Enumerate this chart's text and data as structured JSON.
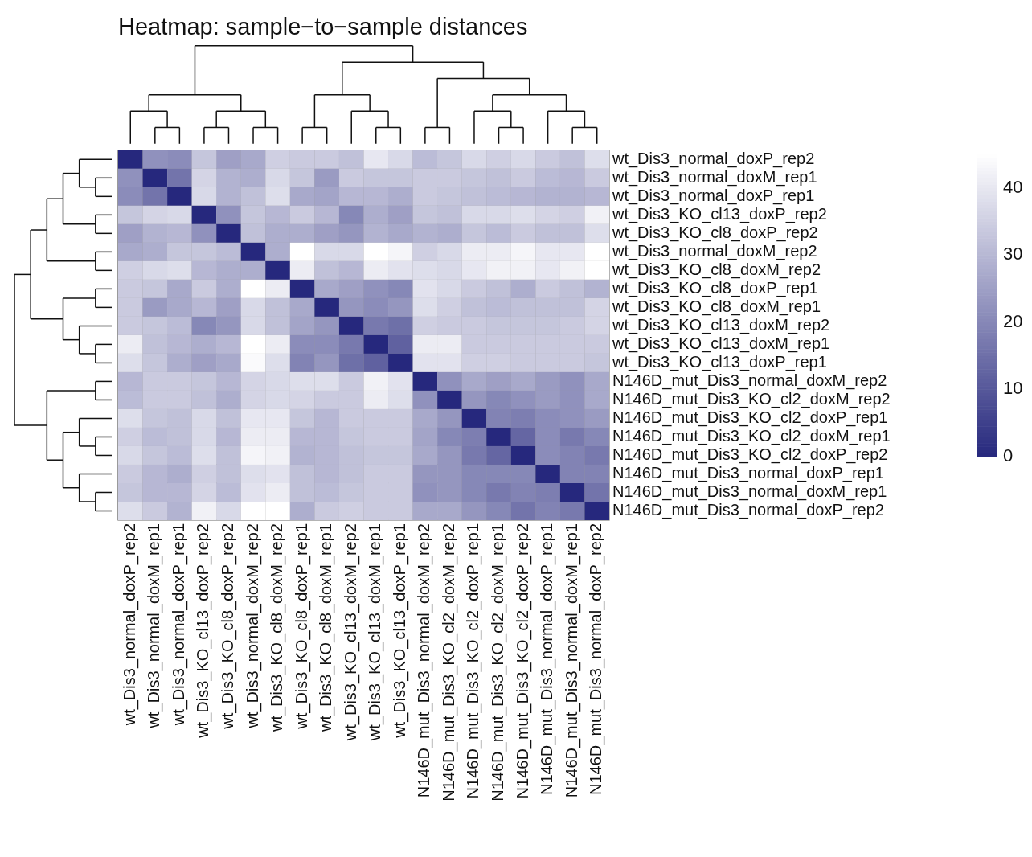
{
  "chart_data": {
    "type": "heatmap",
    "title": "Heatmap: sample−to−sample distances",
    "categories": [
      "wt_Dis3_normal_doxP_rep2",
      "wt_Dis3_normal_doxM_rep1",
      "wt_Dis3_normal_doxP_rep1",
      "wt_Dis3_KO_cl13_doxP_rep2",
      "wt_Dis3_KO_cl8_doxP_rep2",
      "wt_Dis3_normal_doxM_rep2",
      "wt_Dis3_KO_cl8_doxM_rep2",
      "wt_Dis3_KO_cl8_doxP_rep1",
      "wt_Dis3_KO_cl8_doxM_rep1",
      "wt_Dis3_KO_cl13_doxM_rep2",
      "wt_Dis3_KO_cl13_doxM_rep1",
      "wt_Dis3_KO_cl13_doxP_rep1",
      "N146D_mut_Dis3_normal_doxM_rep2",
      "N146D_mut_Dis3_KO_cl2_doxM_rep2",
      "N146D_mut_Dis3_KO_cl2_doxP_rep1",
      "N146D_mut_Dis3_KO_cl2_doxM_rep1",
      "N146D_mut_Dis3_KO_cl2_doxP_rep2",
      "N146D_mut_Dis3_normal_doxP_rep1",
      "N146D_mut_Dis3_normal_doxM_rep1",
      "N146D_mut_Dis3_normal_doxP_rep2"
    ],
    "y_categories": [
      "wt_Dis3_normal_doxP_rep2",
      "wt_Dis3_normal_doxM_rep1",
      "wt_Dis3_normal_doxP_rep1",
      "wt_Dis3_KO_cl13_doxP_rep2",
      "wt_Dis3_KO_cl8_doxP_rep2",
      "wt_Dis3_normal_doxM_rep2",
      "wt_Dis3_KO_cl8_doxM_rep2",
      "wt_Dis3_KO_cl8_doxP_rep1",
      "wt_Dis3_KO_cl8_doxM_rep1",
      "wt_Dis3_KO_cl13_doxM_rep2",
      "wt_Dis3_KO_cl13_doxM_rep1",
      "wt_Dis3_KO_cl13_doxP_rep1",
      "N146D_mut_Dis3_normal_doxM_rep2",
      "N146D_mut_Dis3_KO_cl2_doxM_rep2",
      "N146D_mut_Dis3_KO_cl2_doxP_rep1",
      "N146D_mut_Dis3_KO_cl2_doxM_rep1",
      "N146D_mut_Dis3_KO_cl2_doxP_rep2",
      "N146D_mut_Dis3_normal_doxP_rep1",
      "N146D_mut_Dis3_normal_doxM_rep1",
      "N146D_mut_Dis3_normal_doxP_rep2"
    ],
    "cells": [
      [
        0,
        22,
        21,
        33,
        25,
        27,
        35,
        34,
        34,
        32,
        40,
        37,
        31,
        33,
        37,
        35,
        37,
        34,
        32,
        38
      ],
      [
        22,
        0,
        16,
        36,
        29,
        28,
        37,
        33,
        24,
        34,
        33,
        33,
        34,
        34,
        33,
        32,
        34,
        31,
        30,
        34
      ],
      [
        21,
        16,
        0,
        37,
        29,
        32,
        38,
        27,
        26,
        30,
        30,
        28,
        34,
        33,
        32,
        31,
        30,
        29,
        29,
        30
      ],
      [
        33,
        36,
        37,
        0,
        22,
        33,
        30,
        34,
        30,
        20,
        28,
        25,
        33,
        32,
        37,
        37,
        38,
        36,
        35,
        42
      ],
      [
        25,
        29,
        30,
        22,
        0,
        32,
        28,
        28,
        25,
        23,
        29,
        27,
        29,
        28,
        33,
        31,
        34,
        32,
        32,
        38
      ],
      [
        27,
        28,
        33,
        33,
        31,
        0,
        28,
        45,
        37,
        37,
        45,
        43,
        35,
        37,
        41,
        41,
        43,
        40,
        40,
        45
      ],
      [
        35,
        37,
        38,
        30,
        28,
        28,
        0,
        41,
        32,
        30,
        41,
        39,
        38,
        37,
        40,
        42,
        42,
        40,
        42,
        45
      ],
      [
        34,
        33,
        27,
        34,
        28,
        45,
        41,
        0,
        27,
        25,
        22,
        20,
        39,
        37,
        34,
        32,
        28,
        34,
        32,
        29
      ],
      [
        34,
        24,
        27,
        30,
        25,
        37,
        32,
        27,
        0,
        23,
        21,
        23,
        38,
        35,
        32,
        31,
        32,
        32,
        32,
        36
      ],
      [
        34,
        33,
        31,
        20,
        23,
        37,
        32,
        26,
        23,
        0,
        17,
        15,
        35,
        34,
        34,
        33,
        33,
        33,
        34,
        36
      ],
      [
        41,
        32,
        30,
        28,
        30,
        45,
        41,
        21,
        21,
        17,
        0,
        12,
        41,
        41,
        34,
        34,
        34,
        34,
        34,
        34
      ],
      [
        38,
        33,
        28,
        25,
        27,
        44,
        38,
        19,
        23,
        15,
        12,
        0,
        39,
        39,
        35,
        35,
        34,
        34,
        34,
        33
      ],
      [
        30,
        34,
        34,
        33,
        30,
        36,
        37,
        38,
        38,
        34,
        42,
        39,
        0,
        22,
        27,
        25,
        27,
        24,
        22,
        27
      ],
      [
        31,
        34,
        34,
        32,
        28,
        36,
        37,
        36,
        34,
        34,
        41,
        38,
        22,
        0,
        23,
        20,
        22,
        24,
        22,
        27
      ],
      [
        38,
        33,
        32,
        37,
        32,
        40,
        40,
        33,
        30,
        34,
        34,
        34,
        27,
        23,
        0,
        19,
        18,
        21,
        22,
        24
      ],
      [
        35,
        31,
        32,
        37,
        30,
        41,
        41,
        30,
        30,
        33,
        34,
        34,
        26,
        20,
        18,
        0,
        13,
        21,
        17,
        20
      ],
      [
        37,
        33,
        31,
        38,
        32,
        43,
        42,
        29,
        30,
        32,
        33,
        33,
        27,
        23,
        17,
        13,
        0,
        21,
        19,
        17
      ],
      [
        34,
        30,
        28,
        35,
        32,
        38,
        39,
        32,
        30,
        32,
        34,
        34,
        23,
        23,
        20,
        20,
        20,
        0,
        19,
        19
      ],
      [
        33,
        30,
        30,
        36,
        31,
        39,
        41,
        32,
        31,
        33,
        34,
        34,
        22,
        23,
        20,
        17,
        19,
        18,
        0,
        16
      ],
      [
        38,
        34,
        29,
        42,
        37,
        45,
        45,
        28,
        34,
        35,
        34,
        34,
        27,
        27,
        23,
        20,
        16,
        19,
        17,
        0
      ]
    ],
    "clim": [
      0,
      45
    ],
    "cticks": [
      0,
      10,
      20,
      30,
      40
    ]
  }
}
